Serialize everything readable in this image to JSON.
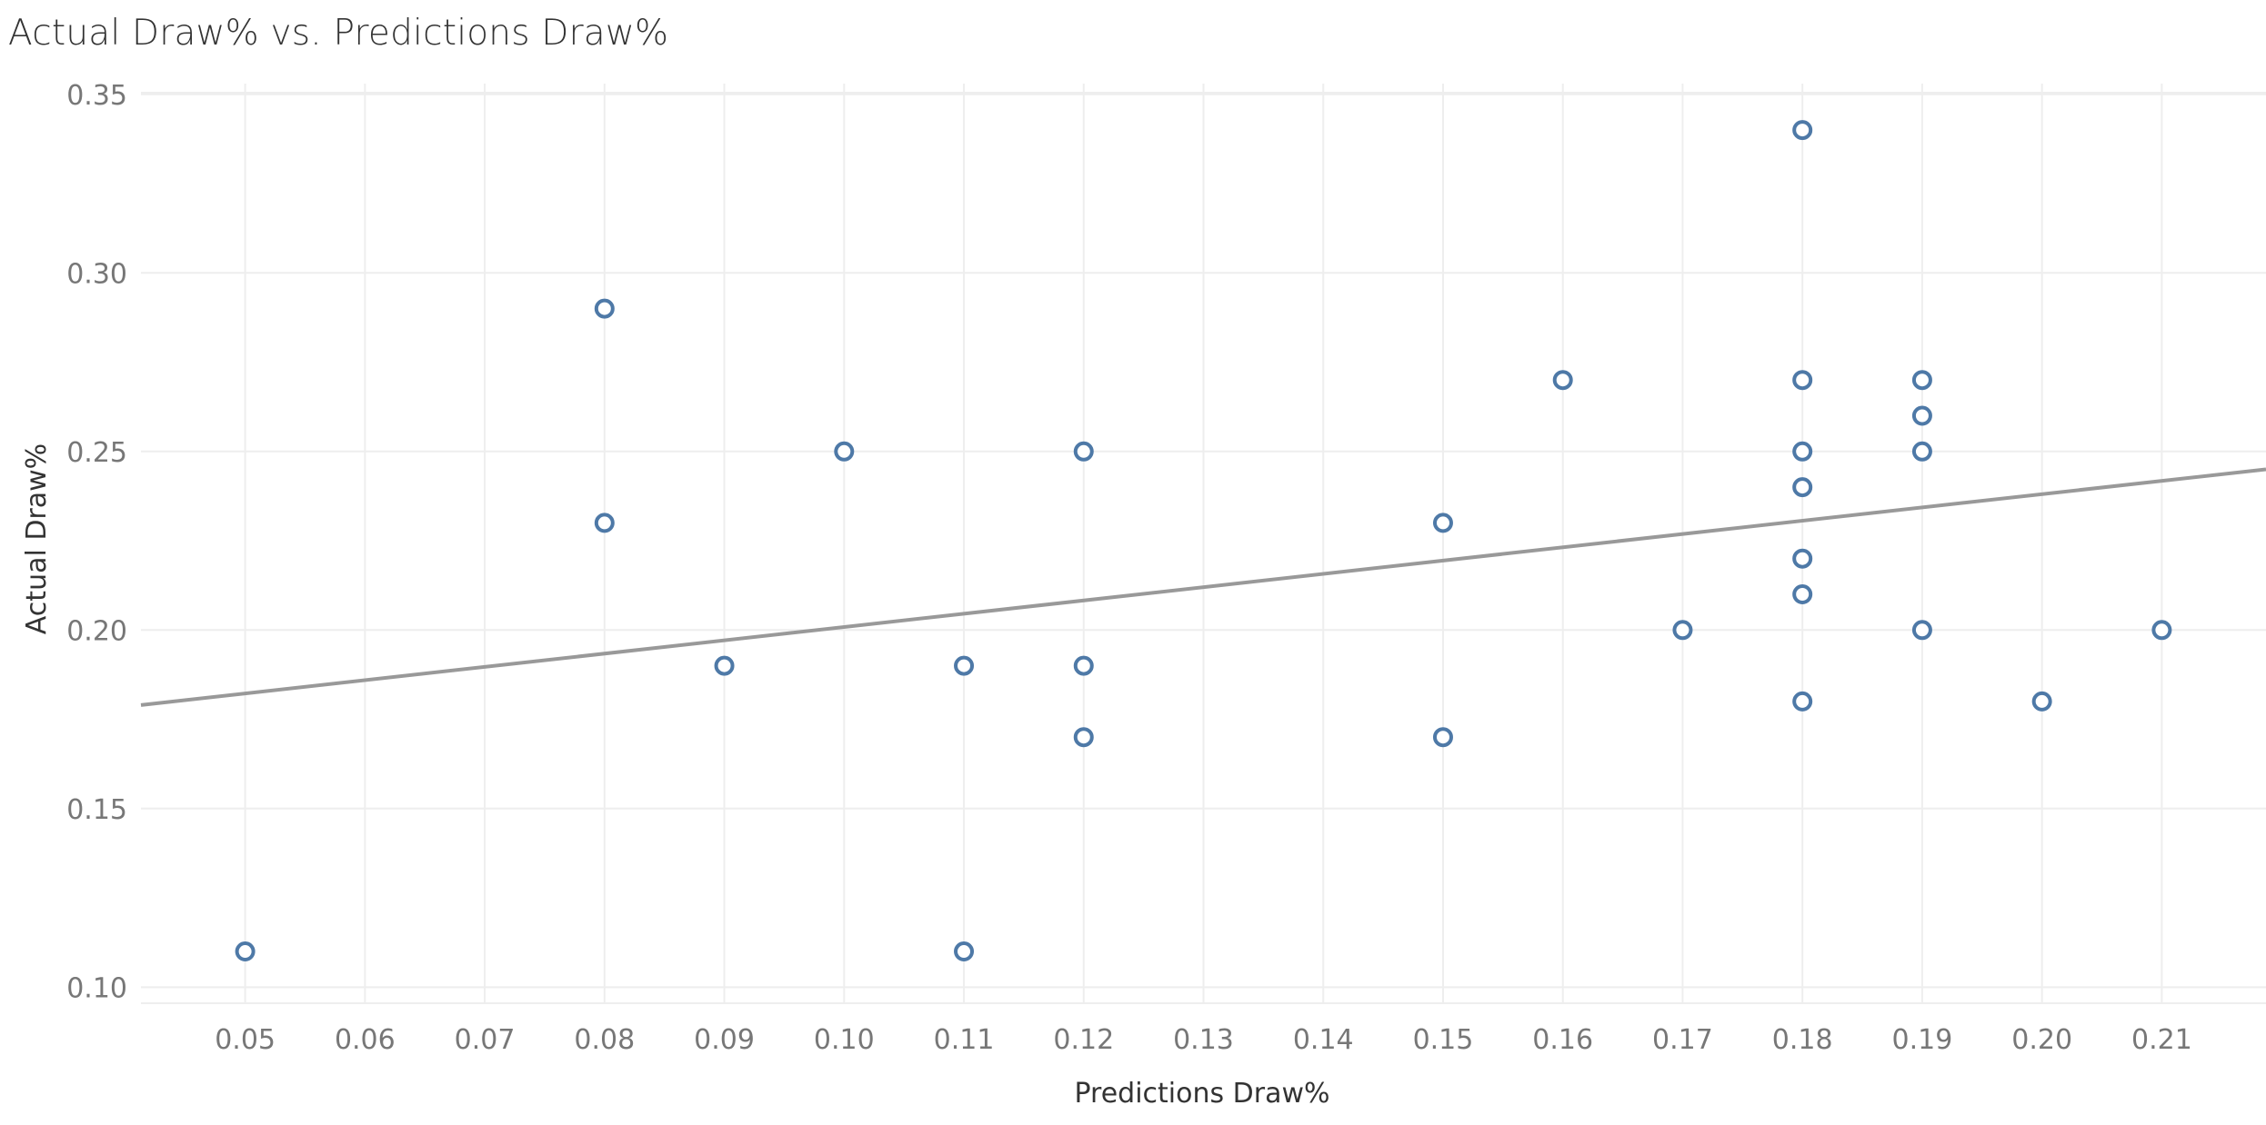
{
  "chart_data": {
    "type": "scatter",
    "title": "Actual Draw% vs. Predictions Draw%",
    "xlabel": "Predictions Draw%",
    "ylabel": "Actual Draw%",
    "xlim": [
      0.0413,
      0.2187
    ],
    "ylim": [
      0.0955,
      0.353
    ],
    "x_ticks": [
      "0.05",
      "0.06",
      "0.07",
      "0.08",
      "0.09",
      "0.10",
      "0.11",
      "0.12",
      "0.13",
      "0.14",
      "0.15",
      "0.16",
      "0.17",
      "0.18",
      "0.19",
      "0.20",
      "0.21"
    ],
    "y_ticks": [
      "0.10",
      "0.15",
      "0.20",
      "0.25",
      "0.30",
      "0.35"
    ],
    "grid": true,
    "legend": "none",
    "colors": {
      "points": "#4e79a7",
      "trend": "#999999",
      "grid": "#eeeeee"
    },
    "series": [
      {
        "points": [
          {
            "x": 0.05,
            "y": 0.11
          },
          {
            "x": 0.08,
            "y": 0.29
          },
          {
            "x": 0.08,
            "y": 0.23
          },
          {
            "x": 0.09,
            "y": 0.19
          },
          {
            "x": 0.1,
            "y": 0.25
          },
          {
            "x": 0.11,
            "y": 0.19
          },
          {
            "x": 0.11,
            "y": 0.11
          },
          {
            "x": 0.12,
            "y": 0.25
          },
          {
            "x": 0.12,
            "y": 0.19
          },
          {
            "x": 0.12,
            "y": 0.17
          },
          {
            "x": 0.15,
            "y": 0.23
          },
          {
            "x": 0.15,
            "y": 0.17
          },
          {
            "x": 0.16,
            "y": 0.27
          },
          {
            "x": 0.17,
            "y": 0.2
          },
          {
            "x": 0.18,
            "y": 0.34
          },
          {
            "x": 0.18,
            "y": 0.27
          },
          {
            "x": 0.18,
            "y": 0.25
          },
          {
            "x": 0.18,
            "y": 0.24
          },
          {
            "x": 0.18,
            "y": 0.22
          },
          {
            "x": 0.18,
            "y": 0.21
          },
          {
            "x": 0.18,
            "y": 0.18
          },
          {
            "x": 0.19,
            "y": 0.27
          },
          {
            "x": 0.19,
            "y": 0.26
          },
          {
            "x": 0.19,
            "y": 0.25
          },
          {
            "x": 0.19,
            "y": 0.2
          },
          {
            "x": 0.2,
            "y": 0.18
          },
          {
            "x": 0.21,
            "y": 0.2
          }
        ]
      }
    ],
    "trend_line": {
      "from": {
        "x": 0.0413,
        "y": 0.179
      },
      "to": {
        "x": 0.2187,
        "y": 0.245
      }
    }
  }
}
